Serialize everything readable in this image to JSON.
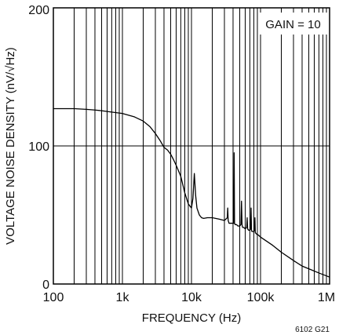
{
  "chart_data": {
    "type": "line",
    "title": "",
    "xlabel": "FREQUENCY (Hz)",
    "ylabel": "VOLTAGE NOISE DENSITY (nV/√Hz)",
    "x_scale": "log",
    "xlim": [
      100,
      1000000
    ],
    "ylim": [
      0,
      200
    ],
    "grid": true,
    "x_tick_labels": [
      "100",
      "1k",
      "10k",
      "100k",
      "1M"
    ],
    "y_tick_labels": [
      "0",
      "100",
      "200"
    ],
    "annotation": "GAIN = 10",
    "figure_code": "6102 G21",
    "series": [
      {
        "x": [
          100,
          150,
          200,
          300,
          400,
          500,
          700,
          1000,
          1500,
          2000,
          2500,
          3000,
          3500,
          4000,
          4500,
          5000,
          5500,
          6000,
          7000,
          8000,
          9000,
          10000,
          10500,
          11000,
          11500,
          12000,
          13000,
          14000,
          15000,
          17000,
          20000,
          25000,
          30000,
          33000,
          33500,
          34000,
          35000,
          38000,
          40000,
          41000,
          41500,
          42000,
          43000,
          45000,
          47000,
          50000,
          52000,
          53000,
          54000,
          55000,
          57000,
          60000,
          63000,
          64000,
          65000,
          67000,
          70000,
          72000,
          73000,
          74000,
          75000,
          77000,
          80000,
          82000,
          83000,
          84000,
          85000,
          88000,
          90000,
          95000,
          100000,
          150000,
          200000,
          300000,
          400000,
          500000,
          700000,
          1000000
        ],
        "y": [
          127,
          127,
          127,
          126.5,
          126,
          125.5,
          124.5,
          123.5,
          121,
          118,
          114,
          109,
          104,
          99,
          97,
          94,
          90,
          86,
          78,
          66,
          58,
          55,
          62,
          80,
          64,
          55,
          50,
          48,
          47.5,
          48,
          48,
          47,
          46,
          48,
          55,
          46,
          44,
          44,
          44,
          44,
          95,
          44,
          43,
          43,
          42,
          42,
          43,
          60,
          43,
          41,
          41,
          40,
          41,
          48,
          40,
          39,
          39,
          40,
          55,
          39,
          38,
          38,
          38,
          39,
          48,
          37,
          37,
          36,
          36,
          35,
          34,
          28,
          23,
          17,
          13,
          11,
          8,
          5
        ]
      }
    ]
  }
}
